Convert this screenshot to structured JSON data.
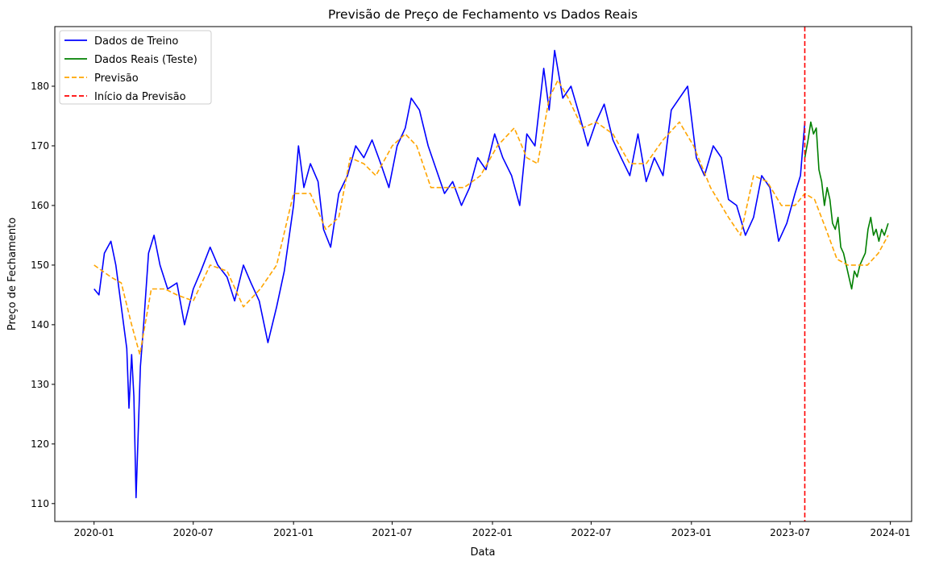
{
  "chart_data": {
    "type": "line",
    "title": "Previsão de Preço de Fechamento vs Dados Reais",
    "xlabel": "Data",
    "ylabel": "Preço de Fechamento",
    "x_axis_type": "date",
    "xlim": [
      "2019-10-21",
      "2024-02-09"
    ],
    "ylim": [
      107,
      190
    ],
    "x_ticks": [
      {
        "date": "2020-01-01",
        "label": "2020-01"
      },
      {
        "date": "2020-07-01",
        "label": "2020-07"
      },
      {
        "date": "2021-01-01",
        "label": "2021-01"
      },
      {
        "date": "2021-07-01",
        "label": "2021-07"
      },
      {
        "date": "2022-01-01",
        "label": "2022-01"
      },
      {
        "date": "2022-07-01",
        "label": "2022-07"
      },
      {
        "date": "2023-01-01",
        "label": "2023-01"
      },
      {
        "date": "2023-07-01",
        "label": "2023-07"
      },
      {
        "date": "2024-01-01",
        "label": "2024-01"
      }
    ],
    "y_ticks": [
      110,
      120,
      130,
      140,
      150,
      160,
      170,
      180
    ],
    "grid": false,
    "legend_position": "top-left",
    "series": [
      {
        "name": "Dados de Treino",
        "color": "#0000ff",
        "style": "solid",
        "x": [
          "2020-01-01",
          "2020-01-10",
          "2020-01-20",
          "2020-02-01",
          "2020-02-10",
          "2020-02-20",
          "2020-03-01",
          "2020-03-05",
          "2020-03-10",
          "2020-03-14",
          "2020-03-18",
          "2020-03-22",
          "2020-03-26",
          "2020-04-01",
          "2020-04-10",
          "2020-04-20",
          "2020-05-01",
          "2020-05-15",
          "2020-06-01",
          "2020-06-15",
          "2020-07-01",
          "2020-07-15",
          "2020-08-01",
          "2020-08-15",
          "2020-09-01",
          "2020-09-15",
          "2020-10-01",
          "2020-10-15",
          "2020-10-30",
          "2020-11-15",
          "2020-12-01",
          "2020-12-15",
          "2021-01-01",
          "2021-01-10",
          "2021-01-20",
          "2021-02-01",
          "2021-02-15",
          "2021-02-25",
          "2021-03-10",
          "2021-03-25",
          "2021-04-10",
          "2021-04-25",
          "2021-05-10",
          "2021-05-25",
          "2021-06-10",
          "2021-06-25",
          "2021-07-10",
          "2021-07-25",
          "2021-08-05",
          "2021-08-20",
          "2021-09-05",
          "2021-09-20",
          "2021-10-05",
          "2021-10-20",
          "2021-11-05",
          "2021-11-20",
          "2021-12-05",
          "2021-12-20",
          "2022-01-05",
          "2022-01-20",
          "2022-02-05",
          "2022-02-20",
          "2022-03-05",
          "2022-03-20",
          "2022-04-05",
          "2022-04-15",
          "2022-04-25",
          "2022-05-10",
          "2022-05-25",
          "2022-06-10",
          "2022-06-25",
          "2022-07-10",
          "2022-07-25",
          "2022-08-10",
          "2022-08-25",
          "2022-09-10",
          "2022-09-25",
          "2022-10-10",
          "2022-10-25",
          "2022-11-10",
          "2022-11-25",
          "2022-12-10",
          "2022-12-25",
          "2023-01-10",
          "2023-01-25",
          "2023-02-10",
          "2023-02-25",
          "2023-03-10",
          "2023-03-25",
          "2023-04-10",
          "2023-04-25",
          "2023-05-10",
          "2023-05-25",
          "2023-06-10",
          "2023-06-25",
          "2023-07-10",
          "2023-07-20",
          "2023-07-28"
        ],
        "values": [
          146,
          145,
          152,
          154,
          150,
          143,
          136,
          126,
          135,
          128,
          111,
          122,
          133,
          140,
          152,
          155,
          150,
          146,
          147,
          140,
          146,
          149,
          153,
          150,
          148,
          144,
          150,
          147,
          144,
          137,
          143,
          149,
          160,
          170,
          163,
          167,
          164,
          156,
          153,
          162,
          165,
          170,
          168,
          171,
          167,
          163,
          170,
          173,
          178,
          176,
          170,
          166,
          162,
          164,
          160,
          163,
          168,
          166,
          172,
          168,
          165,
          160,
          172,
          170,
          183,
          176,
          186,
          178,
          180,
          175,
          170,
          174,
          177,
          171,
          168,
          165,
          172,
          164,
          168,
          165,
          176,
          178,
          180,
          168,
          165,
          170,
          168,
          161,
          160,
          155,
          158,
          165,
          163,
          154,
          157,
          162,
          165,
          174
        ]
      },
      {
        "name": "Dados Reais (Teste)",
        "color": "#008000",
        "style": "solid",
        "x": [
          "2023-07-28",
          "2023-08-03",
          "2023-08-08",
          "2023-08-13",
          "2023-08-18",
          "2023-08-23",
          "2023-08-28",
          "2023-09-02",
          "2023-09-07",
          "2023-09-12",
          "2023-09-17",
          "2023-09-22",
          "2023-09-27",
          "2023-10-02",
          "2023-10-07",
          "2023-10-12",
          "2023-10-17",
          "2023-10-22",
          "2023-10-27",
          "2023-11-01",
          "2023-11-06",
          "2023-11-11",
          "2023-11-16",
          "2023-11-21",
          "2023-11-26",
          "2023-12-01",
          "2023-12-06",
          "2023-12-11",
          "2023-12-16",
          "2023-12-21",
          "2023-12-28"
        ],
        "values": [
          168,
          171,
          174,
          172,
          173,
          166,
          164,
          160,
          163,
          161,
          157,
          156,
          158,
          153,
          152,
          150,
          148,
          146,
          149,
          148,
          150,
          151,
          152,
          156,
          158,
          155,
          156,
          154,
          156,
          155,
          157
        ]
      },
      {
        "name": "Previsão",
        "color": "#ffa500",
        "style": "dashed",
        "x": [
          "2020-01-01",
          "2020-02-01",
          "2020-02-20",
          "2020-03-10",
          "2020-03-25",
          "2020-04-15",
          "2020-05-10",
          "2020-06-01",
          "2020-07-01",
          "2020-08-01",
          "2020-09-01",
          "2020-10-01",
          "2020-11-01",
          "2020-12-01",
          "2021-01-01",
          "2021-02-01",
          "2021-03-01",
          "2021-03-25",
          "2021-04-15",
          "2021-05-10",
          "2021-06-01",
          "2021-07-01",
          "2021-07-25",
          "2021-08-15",
          "2021-09-10",
          "2021-10-10",
          "2021-11-10",
          "2021-12-10",
          "2022-01-10",
          "2022-02-10",
          "2022-03-05",
          "2022-03-25",
          "2022-04-15",
          "2022-05-01",
          "2022-05-20",
          "2022-06-15",
          "2022-07-10",
          "2022-08-10",
          "2022-09-10",
          "2022-10-10",
          "2022-11-10",
          "2022-12-10",
          "2023-01-05",
          "2023-02-05",
          "2023-03-10",
          "2023-04-01",
          "2023-04-25",
          "2023-05-20",
          "2023-06-15",
          "2023-07-10",
          "2023-07-28",
          "2023-08-15",
          "2023-09-05",
          "2023-09-25",
          "2023-10-15",
          "2023-11-01",
          "2023-11-20",
          "2023-12-10",
          "2023-12-28"
        ],
        "values": [
          150,
          148,
          147,
          140,
          135,
          146,
          146,
          145,
          144,
          150,
          149,
          143,
          146,
          150,
          162,
          162,
          156,
          158,
          168,
          167,
          165,
          170,
          172,
          170,
          163,
          163,
          163,
          165,
          170,
          173,
          168,
          167,
          178,
          181,
          178,
          173,
          174,
          172,
          167,
          167,
          171,
          174,
          170,
          163,
          158,
          155,
          165,
          164,
          160,
          160,
          162,
          161,
          156,
          151,
          150,
          150,
          150,
          152,
          155
        ]
      }
    ],
    "vlines": [
      {
        "name": "Início da Previsão",
        "x": "2023-07-28",
        "color": "#ff0000",
        "style": "dashed"
      }
    ]
  }
}
